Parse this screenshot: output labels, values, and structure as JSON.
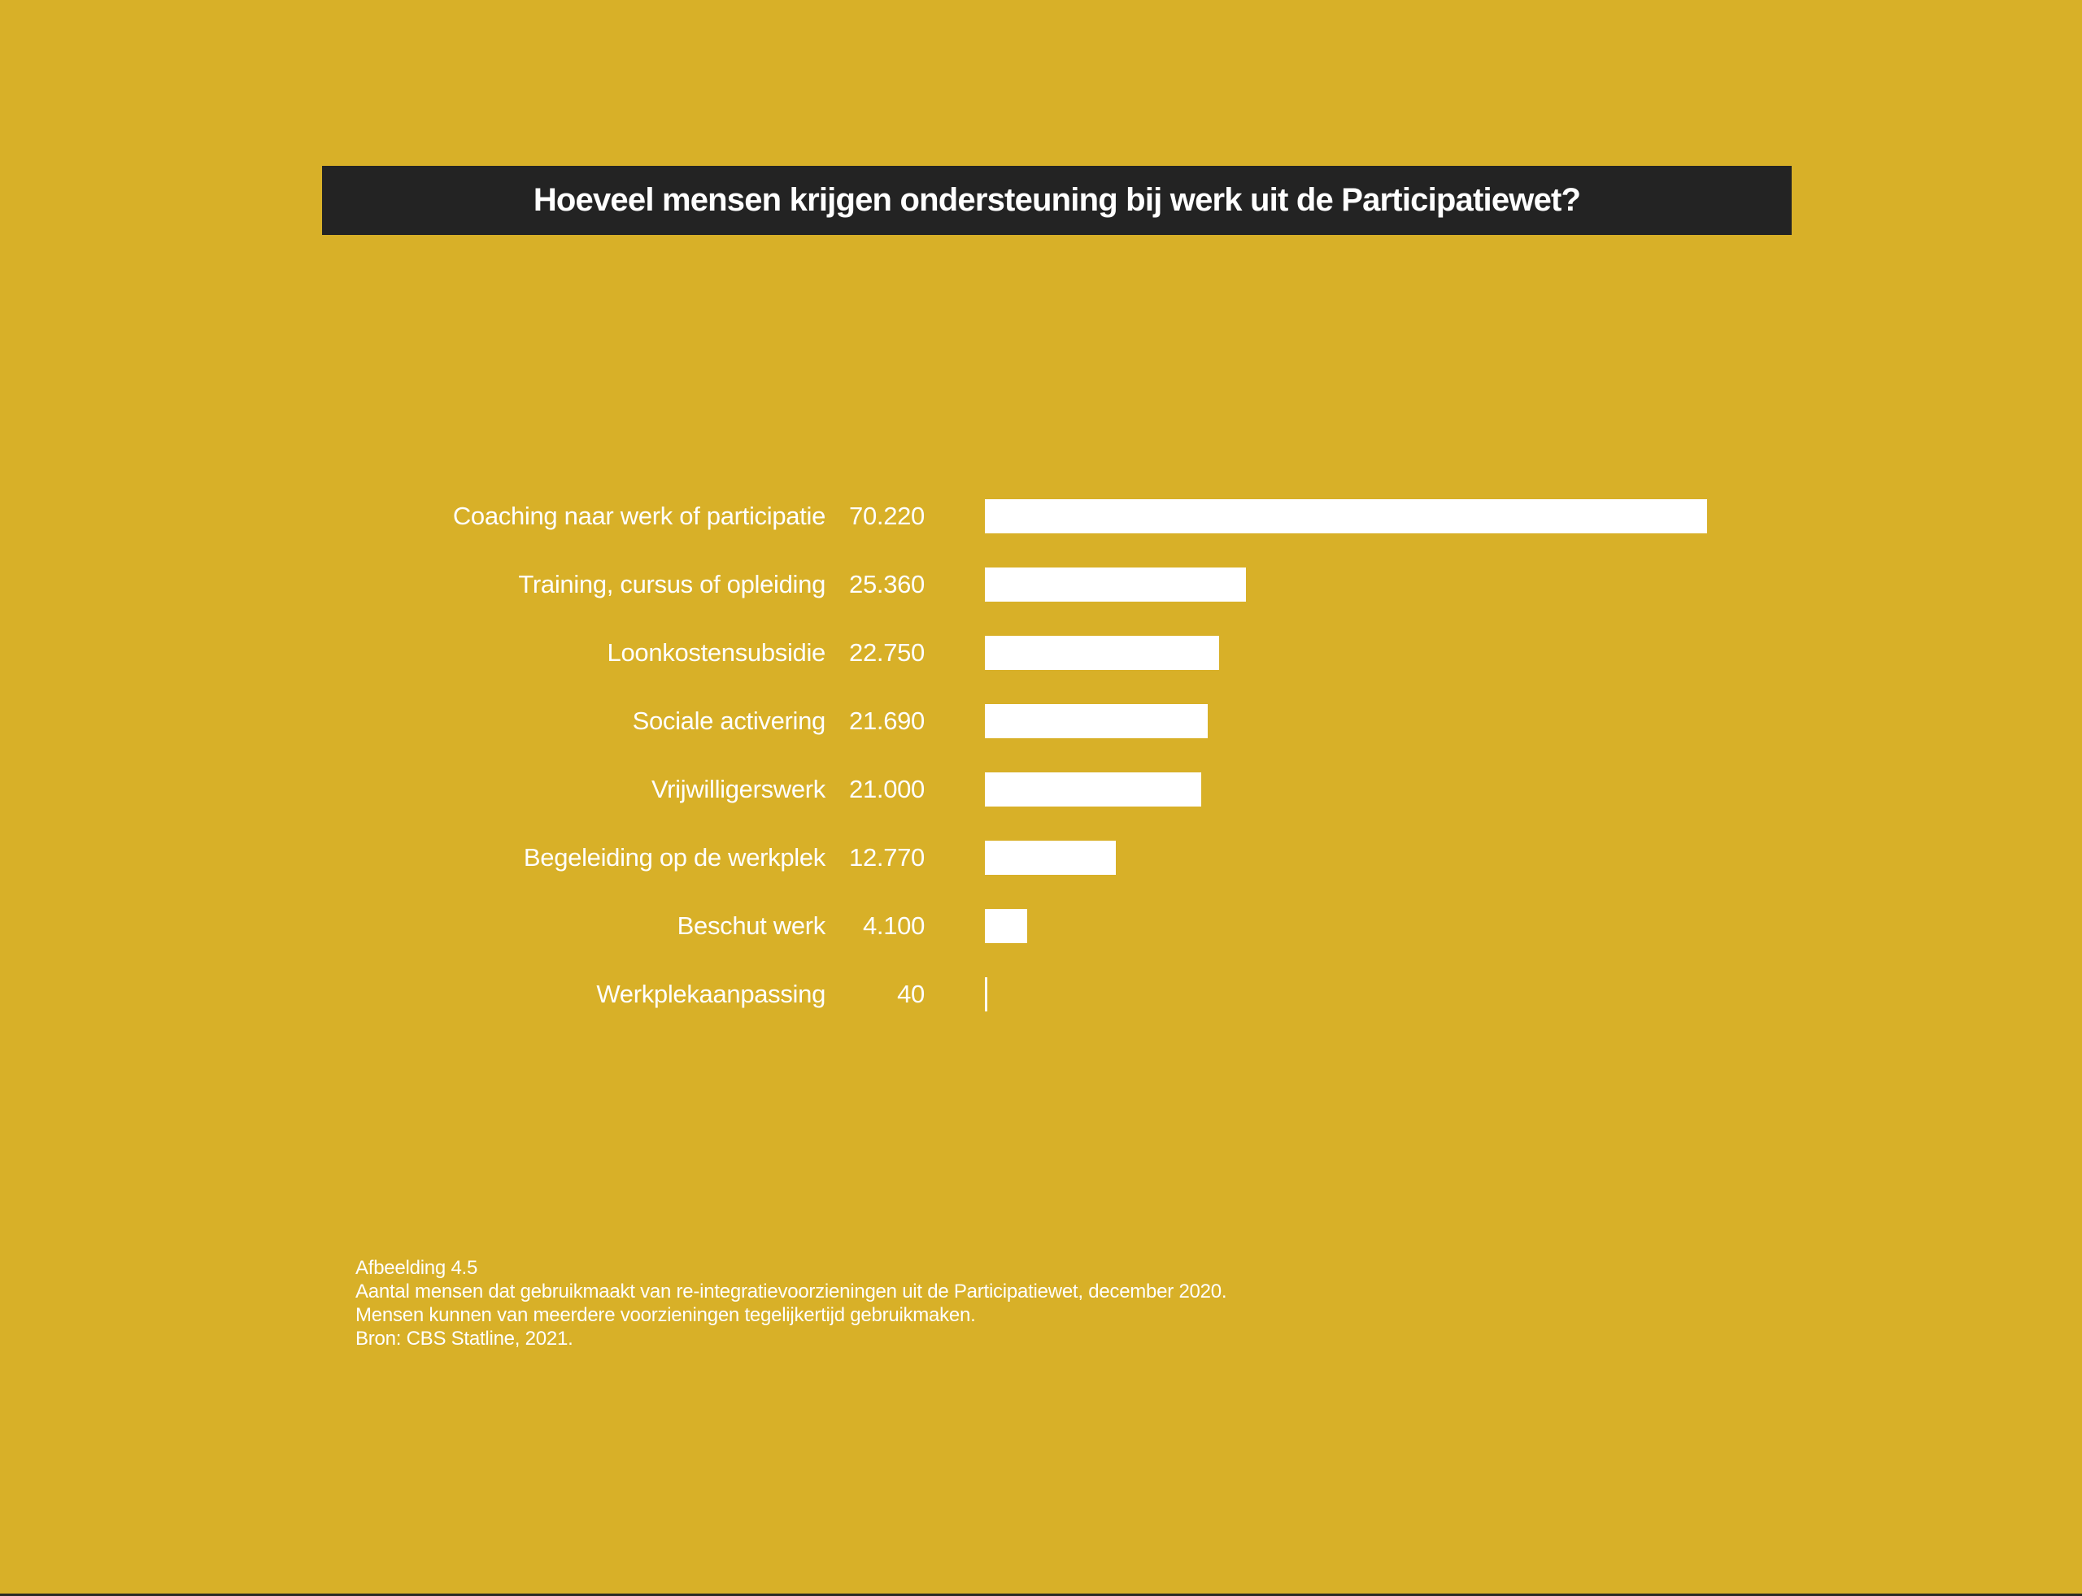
{
  "page": {
    "background_color": "#D8B028",
    "bottom_edge_color": "#2B2A24"
  },
  "header": {
    "title": "Hoeveel mensen krijgen ondersteuning bij werk uit de Participatiewet?",
    "bar_color": "#232323",
    "text_color": "#FFFFFF"
  },
  "chart_data": {
    "type": "bar",
    "orientation": "horizontal",
    "title": "Hoeveel mensen krijgen ondersteuning bij werk uit de Participatiewet?",
    "categories": [
      "Coaching naar werk of participatie",
      "Training, cursus of opleiding",
      "Loonkostensubsidie",
      "Sociale activering",
      "Vrijwilligerswerk",
      "Begeleiding op de werkplek",
      "Beschut werk",
      "Werkplekaanpassing"
    ],
    "values": [
      70220,
      25360,
      22750,
      21690,
      21000,
      12770,
      4100,
      40
    ],
    "value_labels": [
      "70.220",
      "25.360",
      "22.750",
      "21.690",
      "21.000",
      "12.770",
      "4.100",
      "40"
    ],
    "xlim": [
      0,
      70220
    ],
    "bar_color": "#FFFFFF",
    "grid": false,
    "legend": "none",
    "value_label_position": "left-of-bar"
  },
  "caption": {
    "lines": [
      "Afbeelding 4.5",
      "Aantal mensen dat gebruikmaakt van re-integratievoorzieningen uit de Participatiewet, december 2020.",
      "Mensen kunnen van meerdere voorzieningen tegelijkertijd gebruikmaken.",
      "Bron: CBS Statline, 2021."
    ]
  }
}
